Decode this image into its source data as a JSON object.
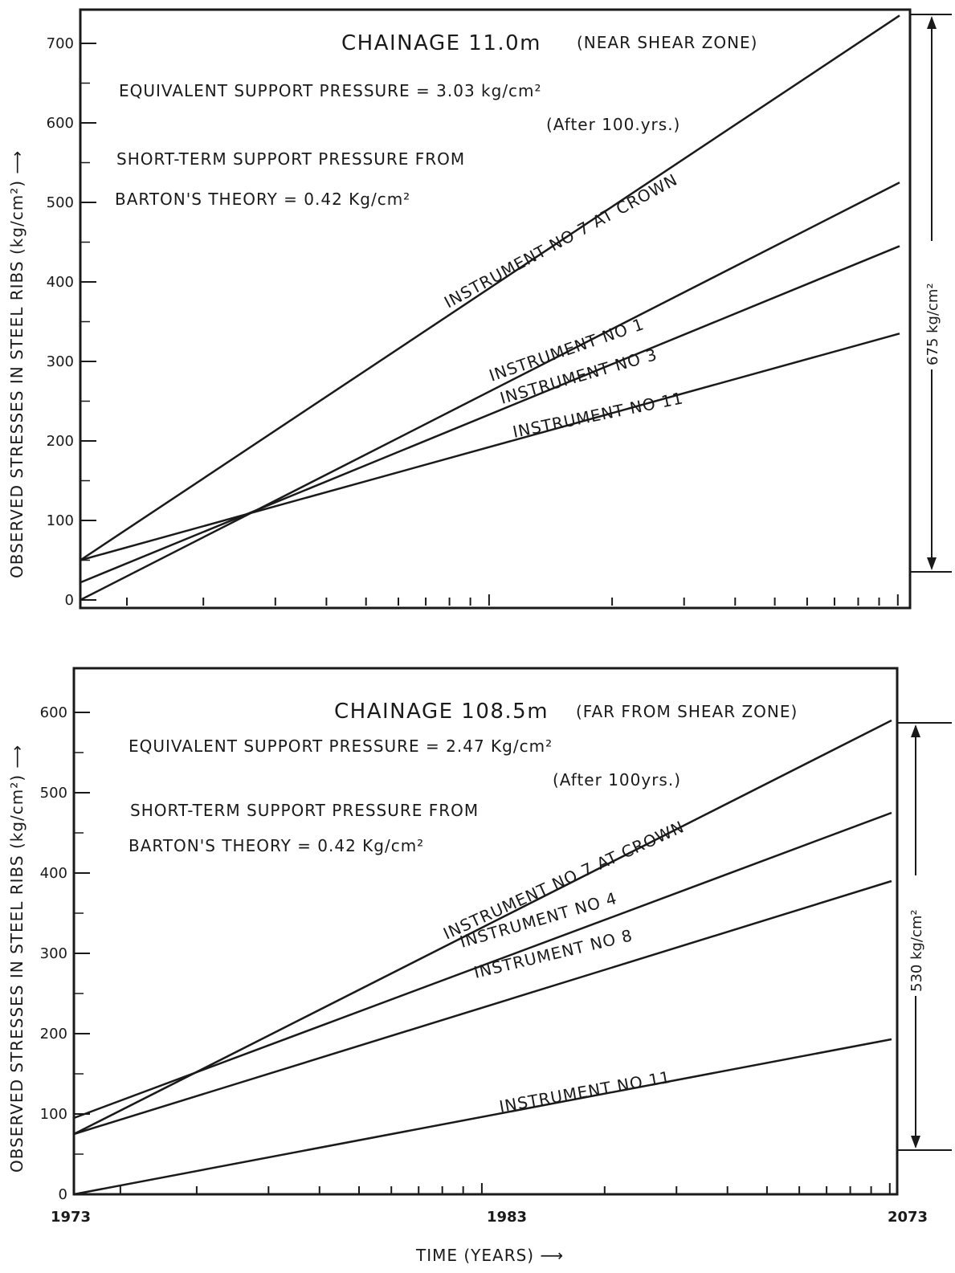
{
  "chart_data": [
    {
      "type": "line",
      "title": "CHAINAGE 11.0m",
      "title_note": "(NEAR SHEAR ZONE)",
      "annotations": [
        "EQUIVALENT SUPPORT PRESSURE = 3.03 kg/cm²",
        "(After 100.yrs.)",
        "SHORT-TERM SUPPORT PRESSURE FROM",
        "BARTON'S THEORY   = 0.42 Kg/cm²"
      ],
      "ylabel": "OBSERVED STRESSES IN STEEL RIBS (kg/cm²) ⟶",
      "ylim": [
        0,
        700
      ],
      "yticks": [
        0,
        100,
        200,
        300,
        400,
        500,
        600,
        700
      ],
      "x_scale": "log",
      "x": [
        1973,
        2073
      ],
      "xticklabels": [],
      "series": [
        {
          "name": "INSTRUMENT NO 7 AT CROWN",
          "values": [
            50,
            735
          ]
        },
        {
          "name": "INSTRUMENT NO 1",
          "values": [
            0,
            525
          ]
        },
        {
          "name": "INSTRUMENT NO 3",
          "values": [
            22,
            445
          ]
        },
        {
          "name": "INSTRUMENT NO 11",
          "values": [
            50,
            335
          ]
        }
      ],
      "range_annotation": "675 kg/cm²",
      "grid": false
    },
    {
      "type": "line",
      "title": "CHAINAGE 108.5m",
      "title_note": "(FAR FROM SHEAR ZONE)",
      "annotations": [
        "EQUIVALENT SUPPORT PRESSURE = 2.47 Kg/cm²",
        "(After 100yrs.)",
        "SHORT-TERM SUPPORT PRESSURE FROM",
        "BARTON'S THEORY   = 0.42 Kg/cm²"
      ],
      "ylabel": "OBSERVED STRESSES IN STEEL RIBS (kg/cm²) ⟶",
      "xlabel": "TIME (YEARS) ⟶",
      "ylim": [
        0,
        600
      ],
      "yticks": [
        0,
        100,
        200,
        300,
        400,
        500,
        600
      ],
      "x_scale": "log",
      "x": [
        1973,
        2073
      ],
      "xticklabels": [
        "1973",
        "1983",
        "2073"
      ],
      "series": [
        {
          "name": "INSTRUMENT NO 7 AT CROWN",
          "values": [
            75,
            590
          ]
        },
        {
          "name": "INSTRUMENT NO 4",
          "values": [
            95,
            475
          ]
        },
        {
          "name": "INSTRUMENT NO 8",
          "values": [
            75,
            390
          ]
        },
        {
          "name": "INSTRUMENT NO 11",
          "values": [
            0,
            193
          ]
        }
      ],
      "range_annotation": "530 kg/cm²",
      "grid": false
    }
  ]
}
